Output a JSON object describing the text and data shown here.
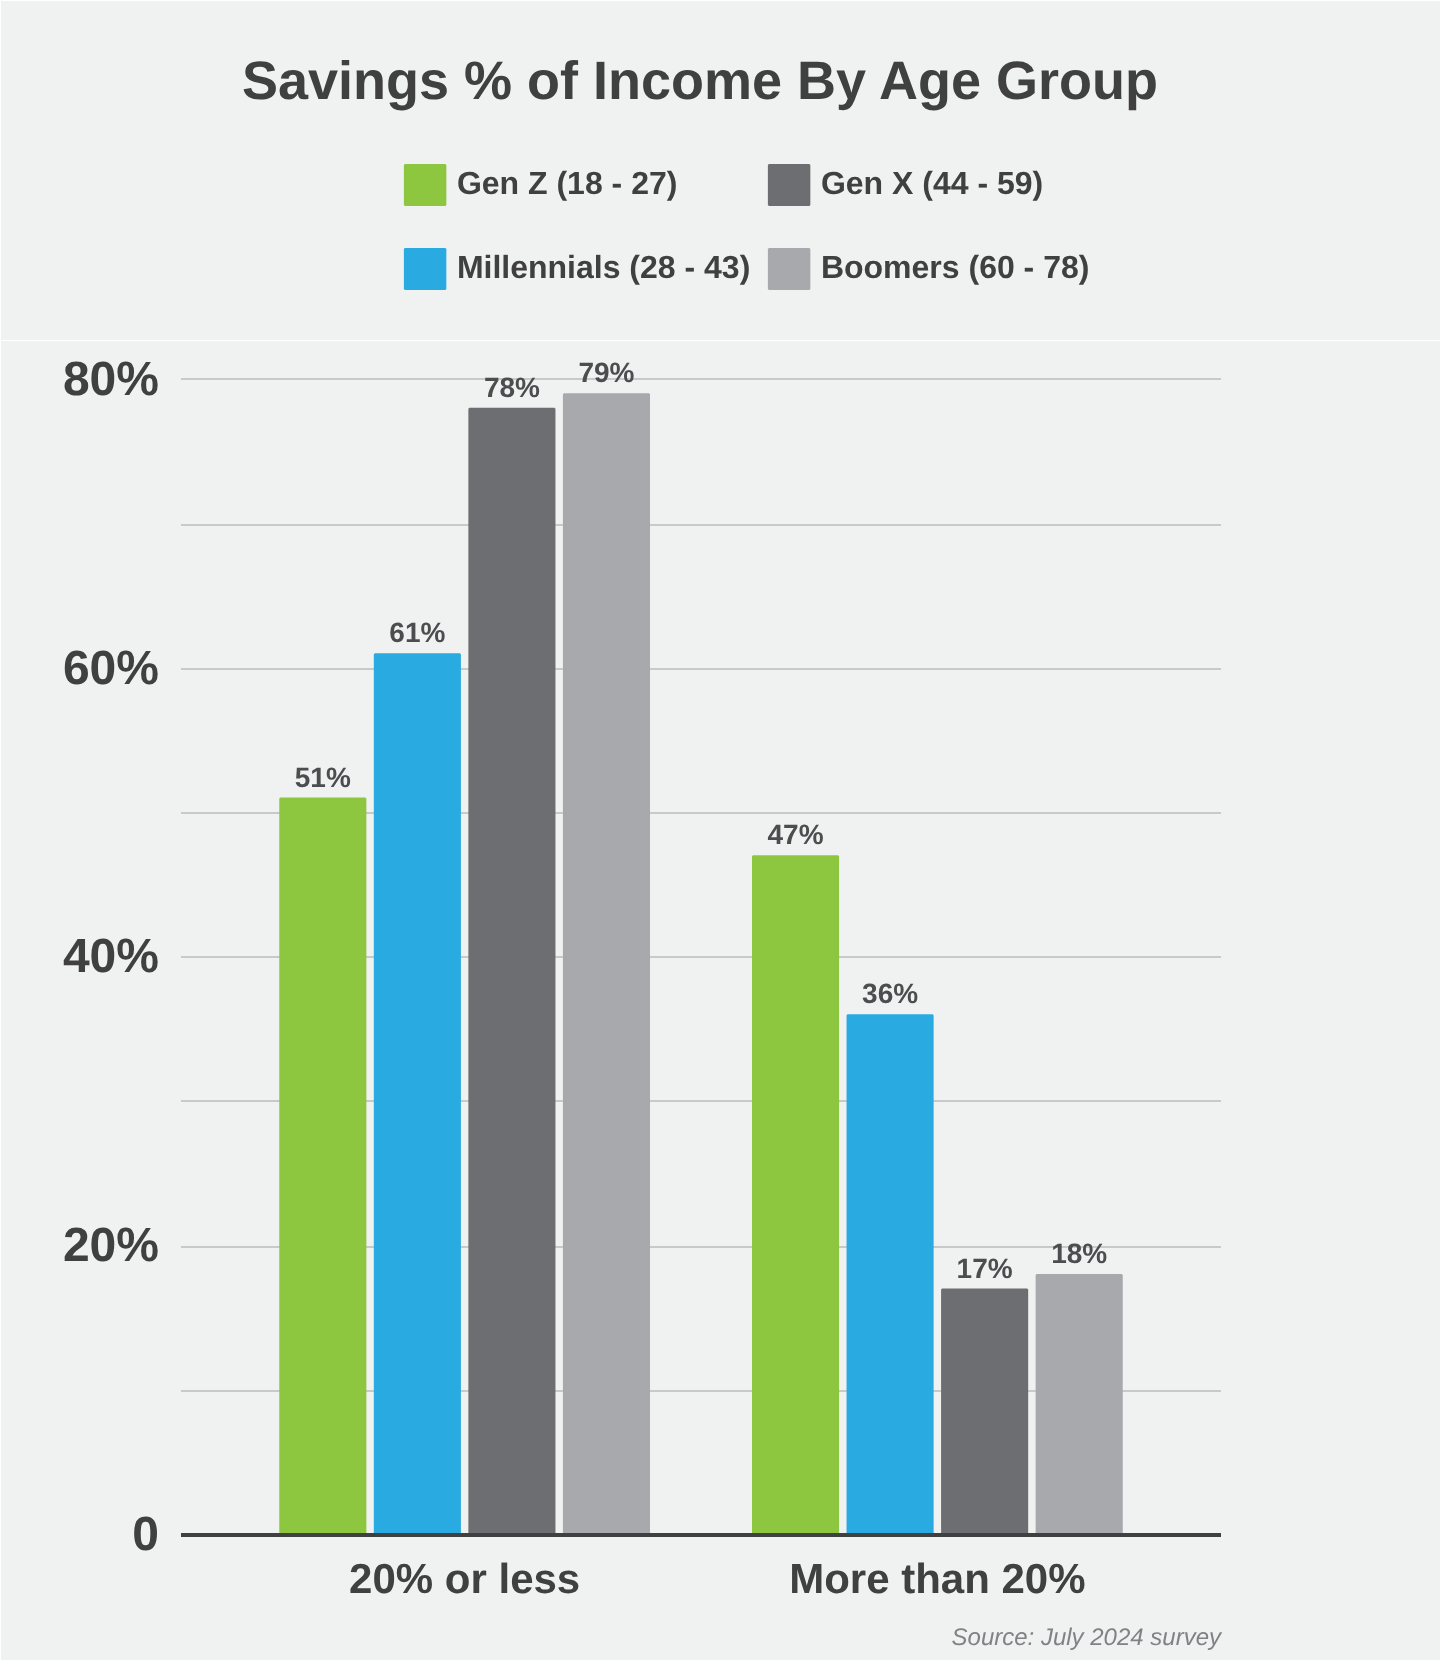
{
  "chart_data": {
    "type": "bar",
    "title": "Savings % of Income By Age Group",
    "categories": [
      "20% or less",
      "More than 20%"
    ],
    "series": [
      {
        "name": "Gen Z (18 - 27)",
        "color": "#8dc63f",
        "values": [
          51,
          47
        ],
        "value_labels": [
          "51%",
          "47%"
        ]
      },
      {
        "name": "Millennials (28 - 43)",
        "color": "#29abe2",
        "values": [
          61,
          36
        ],
        "value_labels": [
          "61%",
          "36%"
        ]
      },
      {
        "name": "Gen X (44 - 59)",
        "color": "#6d6e71",
        "values": [
          78,
          17
        ],
        "value_labels": [
          "78%",
          "17%"
        ]
      },
      {
        "name": "Boomers (60 - 78)",
        "color": "#a7a9ac",
        "values": [
          79,
          18
        ],
        "value_labels": [
          "79%",
          "18%"
        ]
      }
    ],
    "ylim": [
      0,
      82
    ],
    "yticks": [
      0,
      {
        "value": 10,
        "label": null
      },
      {
        "value": 20,
        "label": "20%"
      },
      {
        "value": 30,
        "label": null
      },
      {
        "value": 40,
        "label": "40%"
      },
      {
        "value": 50,
        "label": null
      },
      {
        "value": 60,
        "label": "60%"
      },
      {
        "value": 70,
        "label": null
      },
      {
        "value": 80,
        "label": "80%"
      }
    ],
    "grid": "y",
    "legend": "top",
    "annotations": [
      "Source: July 2024 survey"
    ]
  }
}
